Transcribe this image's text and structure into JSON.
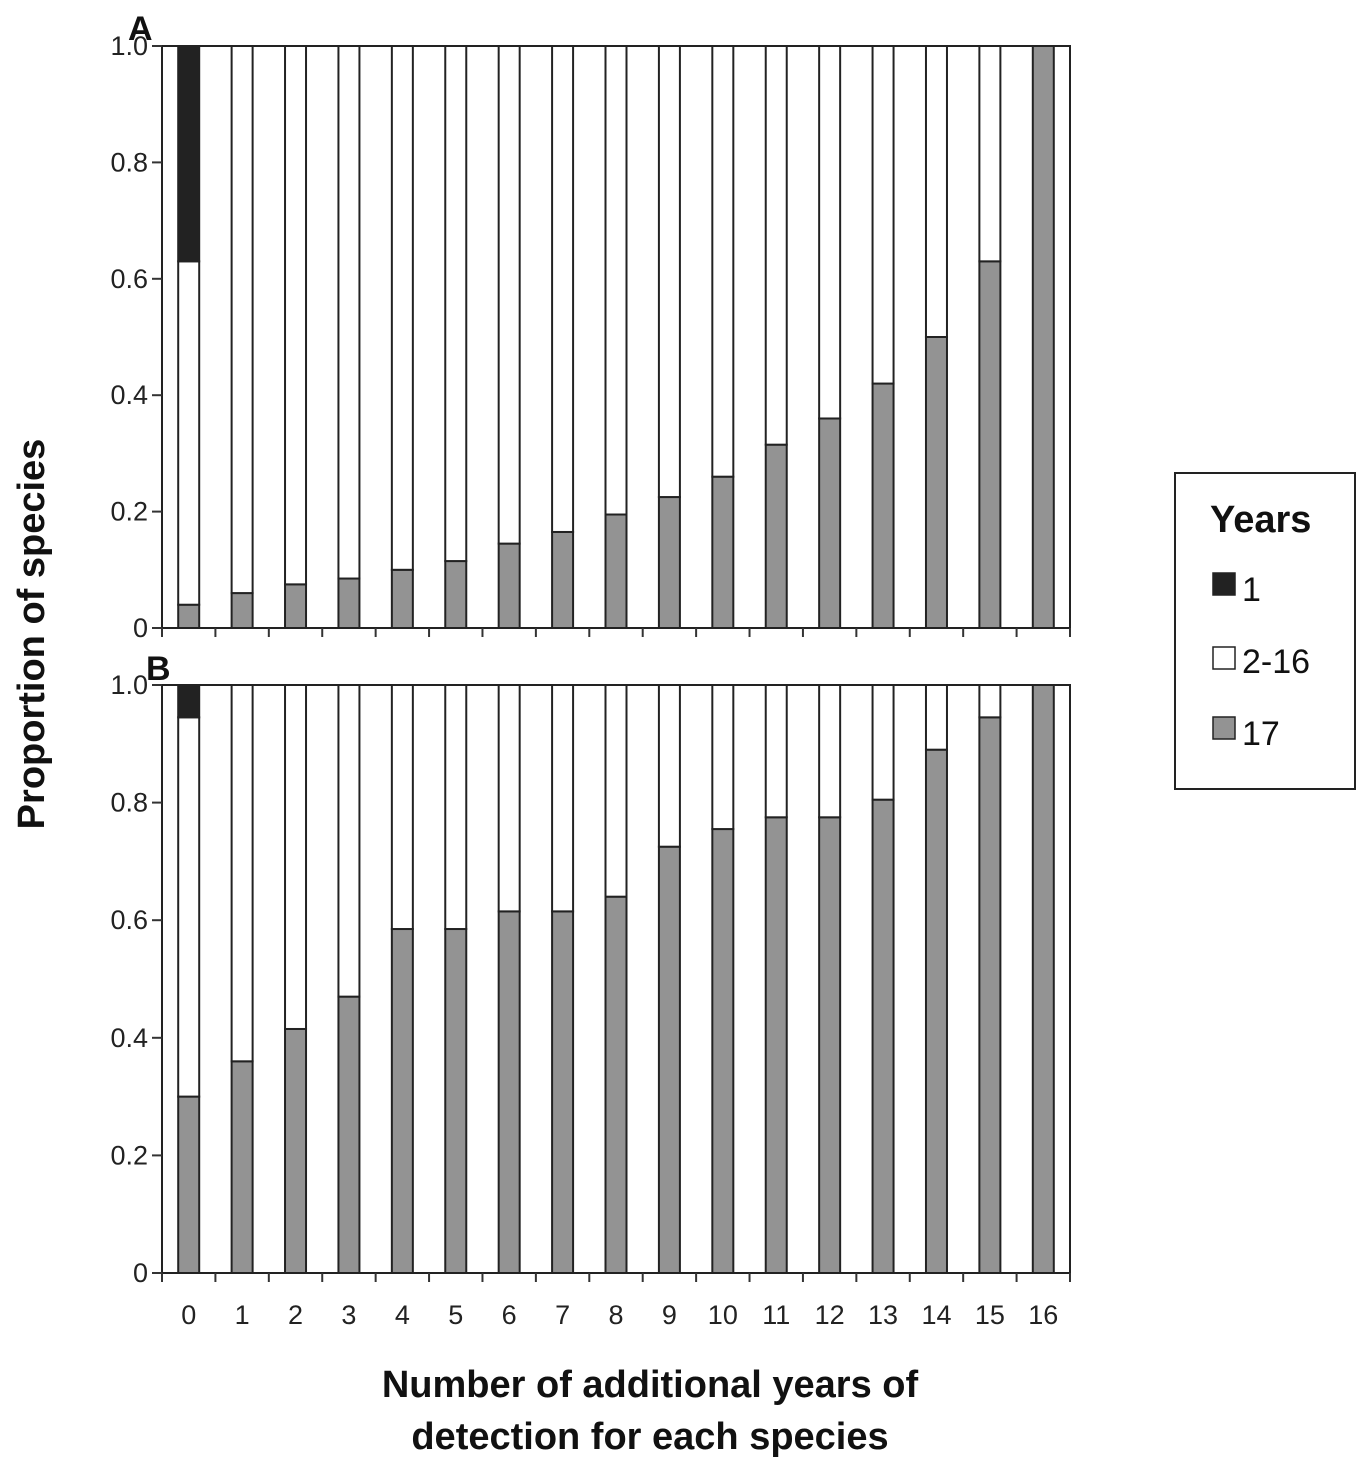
{
  "chart_data": {
    "type": "bar",
    "stacked": true,
    "categories": [
      "0",
      "1",
      "2",
      "3",
      "4",
      "5",
      "6",
      "7",
      "8",
      "9",
      "10",
      "11",
      "12",
      "13",
      "14",
      "15",
      "16"
    ],
    "xlabel_lines": [
      "Number of additional years of",
      "detection for each species"
    ],
    "ylabel": "Proportion of species",
    "ylim": [
      0,
      1.0
    ],
    "yticks": [
      "0",
      "0.2",
      "0.4",
      "0.6",
      "0.8",
      "1.0"
    ],
    "yticks_values": [
      0,
      0.2,
      0.4,
      0.6,
      0.8,
      1.0
    ],
    "grid": false,
    "legend": {
      "title": "Years",
      "placement": "right",
      "entries": [
        "1",
        "2-16",
        "17"
      ]
    },
    "colors": {
      "1": "#222222",
      "2-16": "#ffffff",
      "17": "#939393"
    },
    "panels": [
      {
        "label": "A",
        "series": [
          {
            "name": "17",
            "values": [
              0.04,
              0.06,
              0.075,
              0.085,
              0.1,
              0.115,
              0.145,
              0.165,
              0.195,
              0.225,
              0.26,
              0.315,
              0.36,
              0.42,
              0.5,
              0.63,
              1.0
            ]
          },
          {
            "name": "2-16",
            "values": [
              0.59,
              0.94,
              0.925,
              0.915,
              0.9,
              0.885,
              0.855,
              0.835,
              0.805,
              0.775,
              0.74,
              0.685,
              0.64,
              0.58,
              0.5,
              0.37,
              0.0
            ]
          },
          {
            "name": "1",
            "values": [
              0.37,
              0,
              0,
              0,
              0,
              0,
              0,
              0,
              0,
              0,
              0,
              0,
              0,
              0,
              0,
              0,
              0
            ]
          }
        ]
      },
      {
        "label": "B",
        "series": [
          {
            "name": "17",
            "values": [
              0.3,
              0.36,
              0.415,
              0.47,
              0.585,
              0.585,
              0.615,
              0.615,
              0.64,
              0.725,
              0.755,
              0.775,
              0.775,
              0.805,
              0.89,
              0.945,
              1.0
            ]
          },
          {
            "name": "2-16",
            "values": [
              0.645,
              0.64,
              0.585,
              0.53,
              0.415,
              0.415,
              0.385,
              0.385,
              0.36,
              0.275,
              0.245,
              0.225,
              0.225,
              0.195,
              0.11,
              0.055,
              0.0
            ]
          },
          {
            "name": "1",
            "values": [
              0.055,
              0,
              0,
              0,
              0,
              0,
              0,
              0,
              0,
              0,
              0,
              0,
              0,
              0,
              0,
              0,
              0
            ]
          }
        ]
      }
    ]
  }
}
